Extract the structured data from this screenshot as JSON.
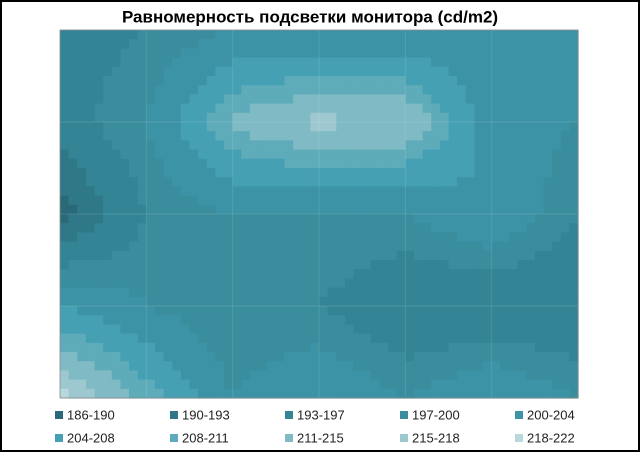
{
  "chart_data": {
    "type": "contour",
    "title": "Равномерность  подсветки монитора (cd/m2)",
    "z": [
      [
        195,
        197,
        200,
        200,
        200,
        200,
        200
      ],
      [
        195,
        200,
        212,
        216,
        215,
        202,
        200
      ],
      [
        188,
        197,
        200,
        200,
        200,
        204,
        197
      ],
      [
        204,
        200,
        197,
        197,
        193,
        193,
        193
      ],
      [
        220,
        210,
        200,
        204,
        200,
        204,
        200
      ]
    ],
    "levels": [
      186,
      190,
      193,
      197,
      200,
      204,
      208,
      211,
      215,
      218,
      222
    ],
    "level_labels": [
      "186-190",
      "190-193",
      "193-197",
      "197-200",
      "200-204",
      "204-208",
      "208-211",
      "211-215",
      "215-218",
      "218-222"
    ],
    "colors": [
      "#2a6a78",
      "#2f7888",
      "#338494",
      "#3a8d9d",
      "#3c93a6",
      "#45a0b3",
      "#5eabba",
      "#7fbac5",
      "#9dc8d0",
      "#b8d8de"
    ]
  }
}
